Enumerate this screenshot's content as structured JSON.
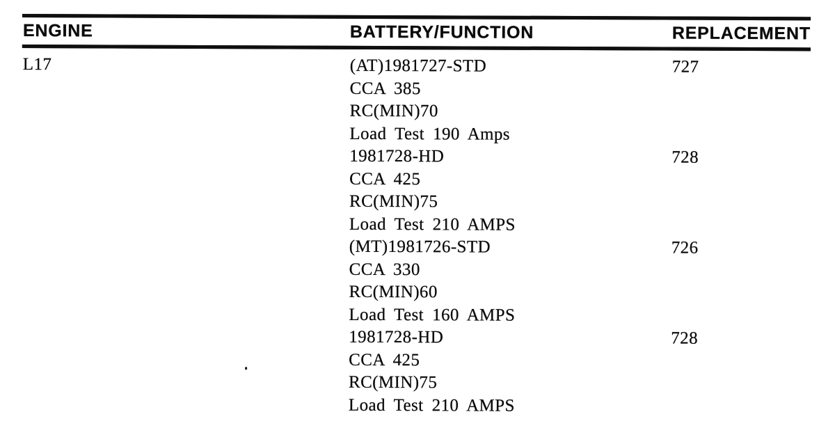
{
  "table": {
    "headers": [
      "ENGINE",
      "BATTERY/FUNCTION",
      "REPLACEMENT"
    ],
    "row": {
      "engine": "L17",
      "batteries": [
        {
          "lines": [
            "(AT)1981727-STD",
            "CCA 385",
            "RC(MIN)70",
            "Load Test 190 Amps"
          ],
          "replacement": "727"
        },
        {
          "lines": [
            "1981728-HD",
            "CCA 425",
            "RC(MIN)75",
            "Load Test 210 AMPS"
          ],
          "replacement": "728"
        },
        {
          "lines": [
            "(MT)1981726-STD",
            "CCA 330",
            "RC(MIN)60",
            "Load Test 160 AMPS"
          ],
          "replacement": "726"
        },
        {
          "lines": [
            "1981728-HD",
            "CCA 425",
            "RC(MIN)75",
            "Load Test 210 AMPS"
          ],
          "replacement": "728"
        }
      ]
    }
  }
}
